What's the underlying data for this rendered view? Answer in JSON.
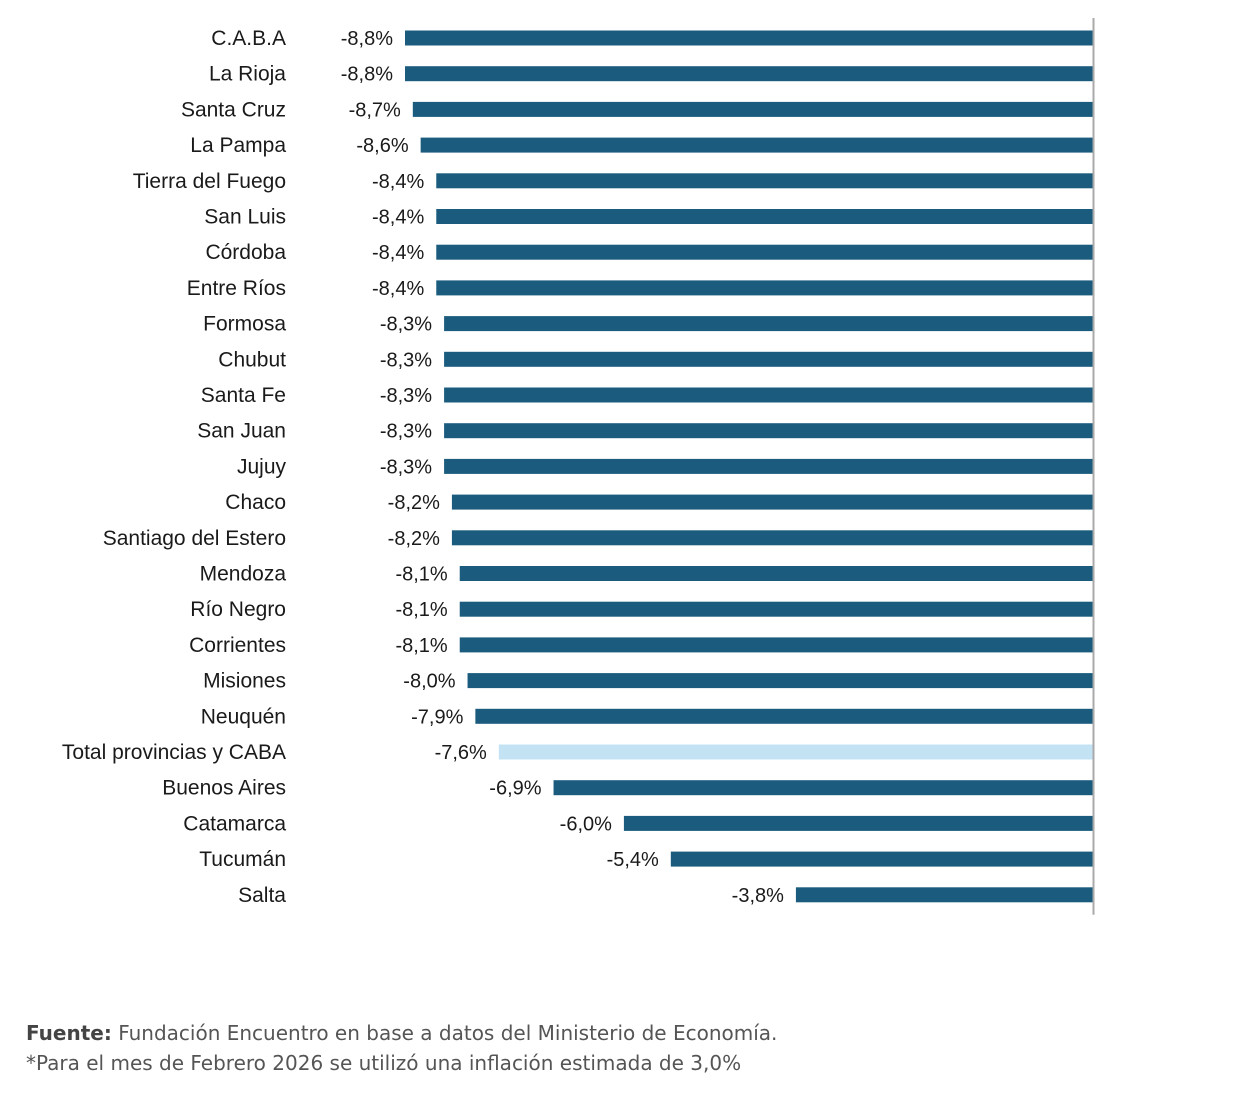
{
  "chart_data": {
    "type": "bar",
    "orientation": "horizontal",
    "categories": [
      "C.A.B.A",
      "La Rioja",
      "Santa Cruz",
      "La Pampa",
      "Tierra del Fuego",
      "San Luis",
      "Córdoba",
      "Entre Ríos",
      "Formosa",
      "Chubut",
      "Santa Fe",
      "San Juan",
      "Jujuy",
      "Chaco",
      "Santiago del Estero",
      "Mendoza",
      "Río Negro",
      "Corrientes",
      "Misiones",
      "Neuquén",
      "Total provincias y CABA",
      "Buenos Aires",
      "Catamarca",
      "Tucumán",
      "Salta"
    ],
    "values": [
      -8.8,
      -8.8,
      -8.7,
      -8.6,
      -8.4,
      -8.4,
      -8.4,
      -8.4,
      -8.3,
      -8.3,
      -8.3,
      -8.3,
      -8.3,
      -8.2,
      -8.2,
      -8.1,
      -8.1,
      -8.1,
      -8.0,
      -7.9,
      -7.6,
      -6.9,
      -6.0,
      -5.4,
      -3.8
    ],
    "value_labels": [
      "-8,8%",
      "-8,8%",
      "-8,7%",
      "-8,6%",
      "-8,4%",
      "-8,4%",
      "-8,4%",
      "-8,4%",
      "-8,3%",
      "-8,3%",
      "-8,3%",
      "-8,3%",
      "-8,3%",
      "-8,2%",
      "-8,2%",
      "-8,1%",
      "-8,1%",
      "-8,1%",
      "-8,0%",
      "-7,9%",
      "-7,6%",
      "-6,9%",
      "-6,0%",
      "-5,4%",
      "-3,8%"
    ],
    "highlight_category": "Total provincias y CABA",
    "title": "",
    "xlabel": "",
    "ylabel": "",
    "xlim": [
      -8.8,
      0
    ],
    "grid": false,
    "legend": "none",
    "colors": {
      "bar": "#1b5c7e",
      "highlight": "#c3e3f5",
      "axis": "#aaaaaa"
    }
  },
  "footer": {
    "source_label": "Fuente:",
    "source_text": " Fundación Encuentro en base a datos del Ministerio de Economía.",
    "note": "*Para el mes de Febrero 2026 se utilizó una inflación estimada de 3,0%"
  }
}
